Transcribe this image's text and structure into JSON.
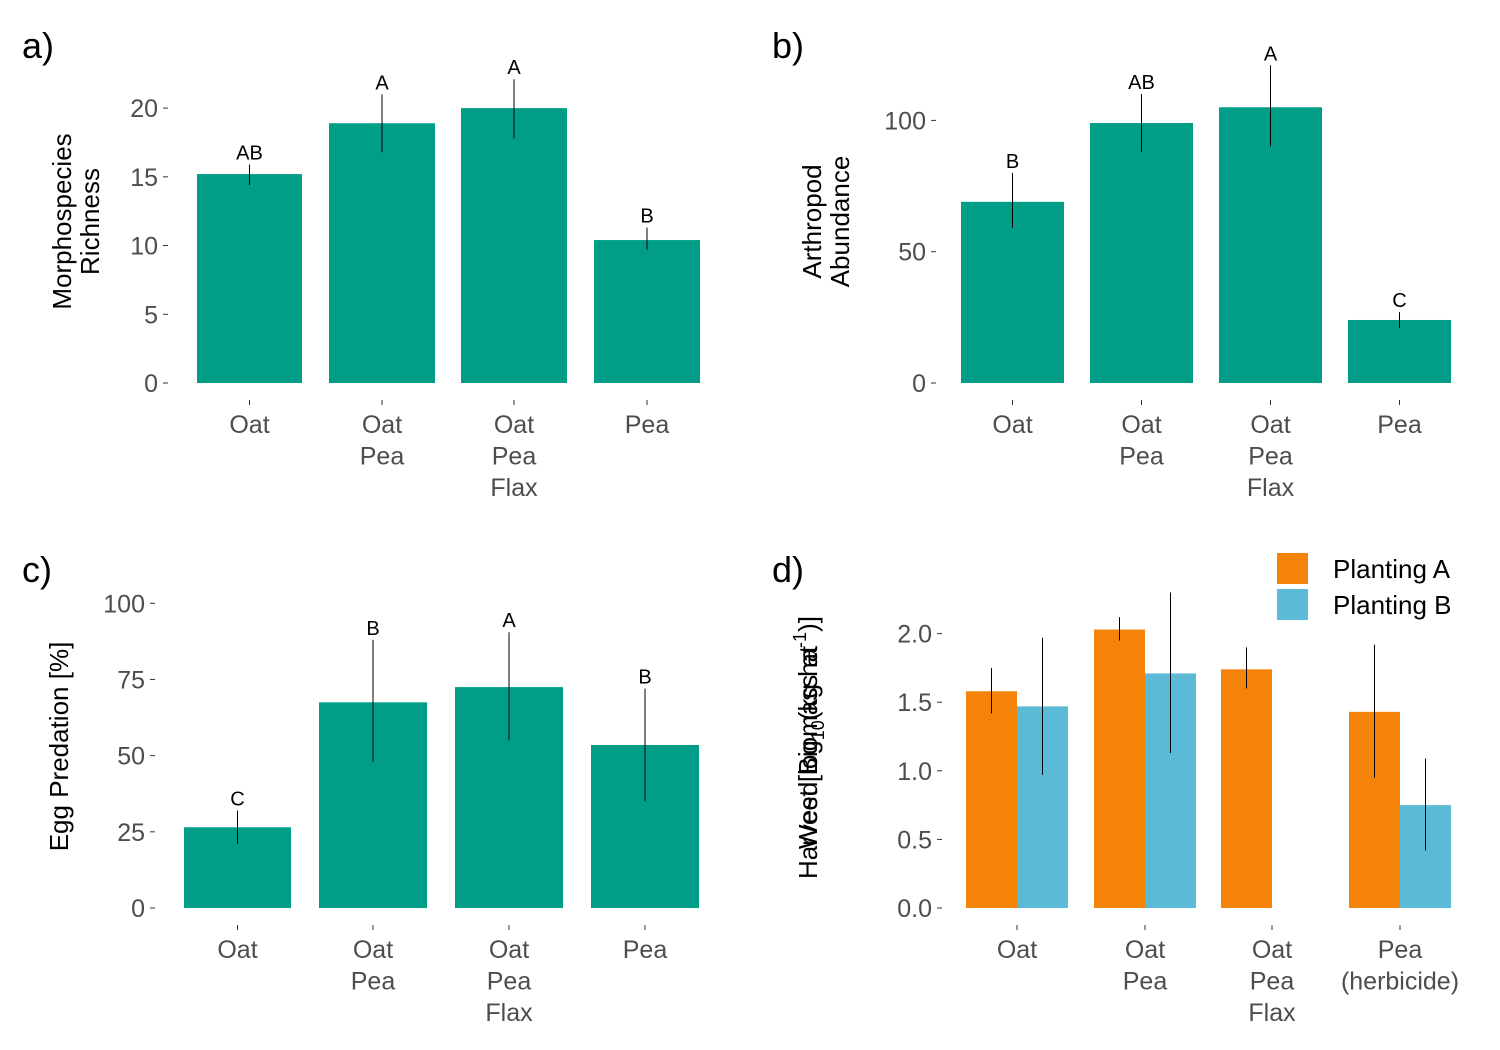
{
  "chart_data": [
    {
      "panel": "a)",
      "type": "bar",
      "categories": [
        [
          "Oat"
        ],
        [
          "Oat",
          "Pea"
        ],
        [
          "Oat",
          "Pea",
          "Flax"
        ],
        [
          "Pea"
        ]
      ],
      "ylabel": [
        "Morphospecies",
        "Richness"
      ],
      "yticks": [
        0,
        5,
        10,
        15,
        20
      ],
      "ylim": [
        0,
        23.5
      ],
      "values": [
        15.2,
        18.9,
        20.0,
        10.4
      ],
      "err_low": [
        14.4,
        16.8,
        17.8,
        9.7
      ],
      "err_high": [
        15.9,
        21.0,
        22.1,
        11.3
      ],
      "letters": [
        "AB",
        "A",
        "A",
        "B"
      ],
      "color": "#009E87",
      "grid": false
    },
    {
      "panel": "b)",
      "type": "bar",
      "categories": [
        [
          "Oat"
        ],
        [
          "Oat",
          "Pea"
        ],
        [
          "Oat",
          "Pea",
          "Flax"
        ],
        [
          "Pea"
        ]
      ],
      "ylabel": [
        "Arthropod",
        "Abundance"
      ],
      "yticks": [
        0,
        50,
        100
      ],
      "ylim": [
        0,
        123
      ],
      "values": [
        69,
        99,
        105,
        24
      ],
      "err_low": [
        59,
        88,
        90,
        21
      ],
      "err_high": [
        80,
        110,
        121,
        27
      ],
      "letters": [
        "B",
        "AB",
        "A",
        "C"
      ],
      "color": "#009E87",
      "grid": false
    },
    {
      "panel": "c)",
      "type": "bar",
      "categories": [
        [
          "Oat"
        ],
        [
          "Oat",
          "Pea"
        ],
        [
          "Oat",
          "Pea",
          "Flax"
        ],
        [
          "Pea"
        ]
      ],
      "ylabel": [
        "Egg Predation [%]"
      ],
      "yticks": [
        0,
        25,
        50,
        75,
        100
      ],
      "ylim": [
        0,
        106
      ],
      "values": [
        26.5,
        67.5,
        72.5,
        53.5
      ],
      "err_low": [
        21,
        48,
        55,
        35
      ],
      "err_high": [
        32,
        88,
        90.5,
        72
      ],
      "letters": [
        "C",
        "B",
        "A",
        "B"
      ],
      "color": "#009E87",
      "grid": false
    },
    {
      "panel": "d)",
      "type": "bar",
      "categories": [
        [
          "Oat"
        ],
        [
          "Oat",
          "Pea"
        ],
        [
          "Oat",
          "Pea",
          "Flax"
        ],
        [
          "Pea",
          "(herbicide)"
        ]
      ],
      "ylabel": [
        "Weed Biomass at",
        "Harvest [log10(kg ha-1)]"
      ],
      "yticks": [
        0.0,
        0.5,
        1.0,
        1.5,
        2.0
      ],
      "ytick_labels": [
        "0.0",
        "0.5",
        "1.0",
        "1.5",
        "2.0"
      ],
      "ylim": [
        0,
        2.34
      ],
      "series": [
        {
          "name": "Planting A",
          "color": "#F5830A",
          "values": [
            1.58,
            2.03,
            1.74,
            1.43
          ],
          "err_low": [
            1.42,
            1.95,
            1.6,
            0.95
          ],
          "err_high": [
            1.75,
            2.12,
            1.9,
            1.92
          ]
        },
        {
          "name": "Planting B",
          "color": "#5BBAD5",
          "values": [
            1.47,
            1.71,
            null,
            0.75
          ],
          "err_low": [
            0.97,
            1.13,
            null,
            0.42
          ],
          "err_high": [
            1.97,
            2.3,
            null,
            1.09
          ]
        }
      ],
      "legend_position": "top-right",
      "grid": false
    }
  ]
}
